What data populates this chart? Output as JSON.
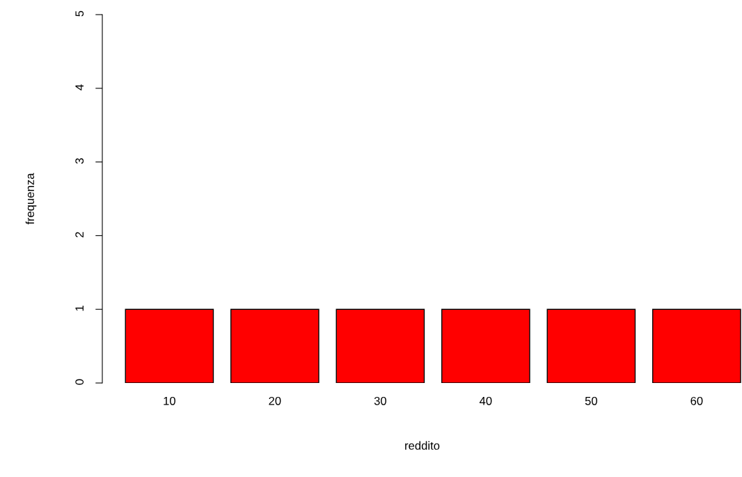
{
  "chart_data": {
    "type": "bar",
    "xlabel": "reddito",
    "ylabel": "frequenza",
    "categories": [
      "10",
      "20",
      "30",
      "40",
      "50",
      "60"
    ],
    "values": [
      1,
      1,
      1,
      1,
      1,
      1
    ],
    "color": "#ff0000",
    "ylim": [
      0,
      5
    ],
    "yticks": [
      0,
      1,
      2,
      3,
      4,
      5
    ],
    "grid": false,
    "legend": false
  }
}
